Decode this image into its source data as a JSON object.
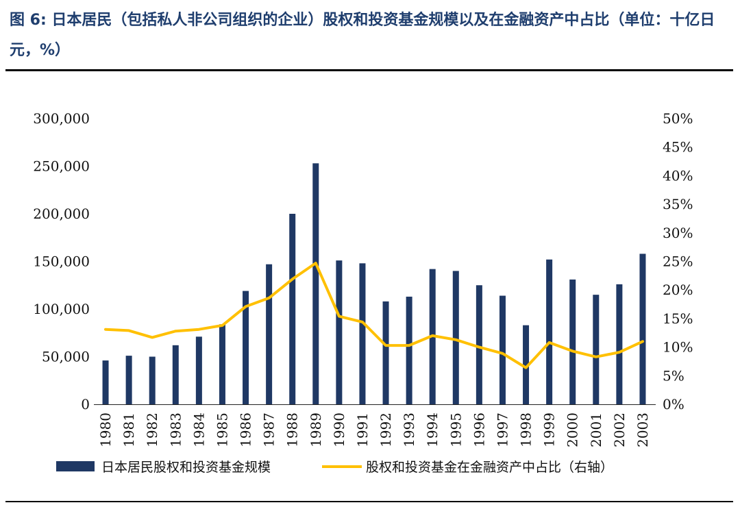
{
  "figure": {
    "title": "图 6:  日本居民（包括私人非公司组织的企业）股权和投资基金规模以及在金融资产中占比（单位：十亿日元，%）"
  },
  "colors": {
    "bar": "#1f3864",
    "line": "#ffc000",
    "title": "#1f3e6e"
  },
  "chart_data": {
    "type": "bar",
    "categories": [
      "1980",
      "1981",
      "1982",
      "1983",
      "1984",
      "1985",
      "1986",
      "1987",
      "1988",
      "1989",
      "1990",
      "1991",
      "1992",
      "1993",
      "1994",
      "1995",
      "1996",
      "1997",
      "1998",
      "1999",
      "2000",
      "2001",
      "2002",
      "2003"
    ],
    "series": [
      {
        "name": "日本居民股权和投资基金规模",
        "type": "bar",
        "axis": "left",
        "values": [
          46000,
          51000,
          50000,
          62000,
          71000,
          84000,
          119000,
          147000,
          200000,
          253000,
          151000,
          148000,
          108000,
          113000,
          142000,
          140000,
          125000,
          114000,
          83000,
          152000,
          131000,
          115000,
          126000,
          158000
        ]
      },
      {
        "name": "股权和投资基金在金融资产中占比（右轴）",
        "type": "line",
        "axis": "right",
        "values": [
          13.1,
          12.9,
          11.7,
          12.8,
          13.1,
          13.8,
          17.1,
          18.6,
          21.9,
          24.7,
          15.4,
          14.4,
          10.3,
          10.3,
          12.0,
          11.3,
          10.0,
          8.9,
          6.4,
          10.8,
          9.3,
          8.3,
          9.1,
          11.0
        ]
      }
    ],
    "y_left": {
      "ylim": [
        0,
        300000
      ],
      "ticks": [
        "0",
        "50,000",
        "100,000",
        "150,000",
        "200,000",
        "250,000",
        "300,000"
      ]
    },
    "y_right": {
      "ylim": [
        0,
        50
      ],
      "ticks": [
        "0%",
        "5%",
        "10%",
        "15%",
        "20%",
        "25%",
        "30%",
        "35%",
        "40%",
        "45%",
        "50%"
      ]
    },
    "grid": false,
    "legend": "bottom"
  }
}
